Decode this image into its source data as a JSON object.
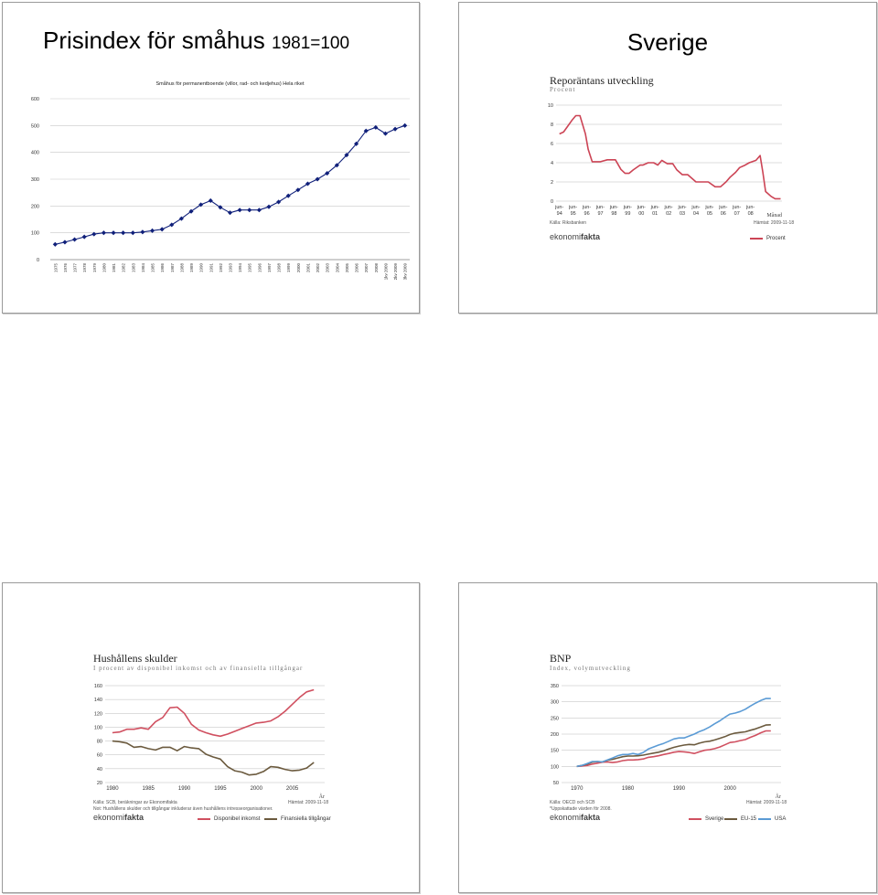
{
  "slides": [
    {
      "title_main": "Prisindex för småhus",
      "title_small": "1981=100",
      "chart_data": {
        "type": "line",
        "title": "Småhus för permanentboende (villor, rad- och kedjehus) Hela riket",
        "x": [
          "1975",
          "1976",
          "1977",
          "1978",
          "1979",
          "1980",
          "1981",
          "1982",
          "1983",
          "1984",
          "1985",
          "1986",
          "1987",
          "1988",
          "1989",
          "1990",
          "1991",
          "1992",
          "1993",
          "1994",
          "1995",
          "1996",
          "1997",
          "1998",
          "1999",
          "2000",
          "2001",
          "2002",
          "2003",
          "2004",
          "2005",
          "2006",
          "2007",
          "2008",
          "1kv 2009",
          "2kv 2009",
          "3kv 2009"
        ],
        "values": [
          57,
          65,
          75,
          85,
          95,
          100,
          100,
          100,
          100,
          103,
          108,
          113,
          130,
          153,
          180,
          205,
          220,
          195,
          175,
          185,
          185,
          185,
          197,
          215,
          238,
          260,
          283,
          300,
          322,
          352,
          390,
          432,
          480,
          493,
          470,
          487,
          500
        ],
        "ylim": [
          0,
          600
        ],
        "yticks": [
          0,
          100,
          200,
          300,
          400,
          500,
          600
        ],
        "color": "#10207a",
        "grid": true
      }
    },
    {
      "title_main": "Sverige",
      "logo": {
        "ek": "ekonomi",
        "fa": "fakta"
      },
      "chart_data": {
        "type": "line",
        "title": "Reporäntans utveckling",
        "subtitle": "Procent",
        "xlabel": "Månad",
        "xticks": [
          "jun-94",
          "jun-95",
          "jun-96",
          "jun-97",
          "jun-98",
          "jun-99",
          "jun-00",
          "jun-01",
          "jun-02",
          "jun-03",
          "jun-04",
          "jun-05",
          "jun-06",
          "jun-07",
          "jun-08"
        ],
        "x": [
          1994.0,
          1994.3,
          1994.6,
          1994.9,
          1995.2,
          1995.5,
          1995.9,
          1996.1,
          1996.4,
          1996.7,
          1997.0,
          1997.5,
          1997.9,
          1998.1,
          1998.5,
          1998.8,
          1999.1,
          1999.4,
          1999.9,
          2000.1,
          2000.5,
          2000.9,
          2001.2,
          2001.5,
          2001.9,
          2002.3,
          2002.6,
          2003.0,
          2003.4,
          2003.8,
          2004.0,
          2004.5,
          2004.9,
          2005.4,
          2005.8,
          2006.2,
          2006.5,
          2006.9,
          2007.2,
          2007.6,
          2007.9,
          2008.4,
          2008.7,
          2008.9,
          2009.1,
          2009.5,
          2009.8,
          2010.2
        ],
        "values": [
          7.0,
          7.2,
          7.8,
          8.4,
          8.9,
          8.9,
          7.0,
          5.4,
          4.1,
          4.1,
          4.1,
          4.3,
          4.3,
          4.3,
          3.3,
          2.9,
          2.9,
          3.25,
          3.75,
          3.75,
          4.0,
          4.0,
          3.75,
          4.25,
          3.9,
          3.9,
          3.25,
          2.75,
          2.75,
          2.25,
          2.0,
          2.0,
          2.0,
          1.5,
          1.5,
          2.0,
          2.5,
          3.0,
          3.5,
          3.75,
          4.0,
          4.25,
          4.75,
          3.0,
          1.0,
          0.5,
          0.25,
          0.25
        ],
        "ylim": [
          0,
          10
        ],
        "yticks": [
          0,
          2,
          4,
          6,
          8,
          10
        ],
        "source": "Källa: Riksbanken",
        "fetched": "Hämtat: 2009-11-18",
        "legend": [
          "Procent"
        ],
        "color": "#cc4455"
      }
    },
    {
      "logo": {
        "ek": "ekonomi",
        "fa": "fakta"
      },
      "chart_data": {
        "type": "line",
        "title": "Hushållens skulder",
        "subtitle": "I procent av disponibel inkomst och av finansiella tillgångar",
        "xlabel": "År",
        "xticks": [
          1980,
          1985,
          1990,
          1995,
          2000,
          2005
        ],
        "x": [
          1980,
          1981,
          1982,
          1983,
          1984,
          1985,
          1986,
          1987,
          1988,
          1989,
          1990,
          1991,
          1992,
          1993,
          1994,
          1995,
          1996,
          1997,
          1998,
          1999,
          2000,
          2001,
          2002,
          2003,
          2004,
          2005,
          2006,
          2007,
          2008
        ],
        "ylim": [
          20,
          160
        ],
        "yticks": [
          20,
          40,
          60,
          80,
          100,
          120,
          140,
          160
        ],
        "series": [
          {
            "name": "Disponibel inkomst",
            "color": "#d05060",
            "values": [
              92,
              93,
              97,
              97,
              99,
              97,
              108,
              114,
              128,
              129,
              120,
              104,
              96,
              92,
              89,
              87,
              90,
              94,
              98,
              102,
              106,
              107,
              109,
              115,
              123,
              133,
              143,
              151,
              154
            ]
          },
          {
            "name": "Finansiella tillgångar",
            "color": "#6b5a3e",
            "values": [
              80,
              79,
              77,
              71,
              72,
              69,
              67,
              71,
              71,
              66,
              72,
              70,
              69,
              61,
              57,
              54,
              43,
              37,
              35,
              31,
              32,
              36,
              43,
              42,
              39,
              37,
              38,
              41,
              49
            ]
          }
        ],
        "source": "Källa: SCB, beräkningar av Ekonomifakta",
        "fetched": "Hämtat: 2009-11-18",
        "note": "Not: Hushållens skulder och tillgångar inkluderar även hushållens intresseorganisationer."
      }
    },
    {
      "logo": {
        "ek": "ekonomi",
        "fa": "fakta"
      },
      "chart_data": {
        "type": "line",
        "title": "BNP",
        "subtitle": "Index, volymutveckling",
        "xlabel": "År",
        "xticks": [
          1970,
          1980,
          1990,
          2000
        ],
        "x": [
          1970,
          1971,
          1972,
          1973,
          1974,
          1975,
          1976,
          1977,
          1978,
          1979,
          1980,
          1981,
          1982,
          1983,
          1984,
          1985,
          1986,
          1987,
          1988,
          1989,
          1990,
          1991,
          1992,
          1993,
          1994,
          1995,
          1996,
          1997,
          1998,
          1999,
          2000,
          2001,
          2002,
          2003,
          2004,
          2005,
          2006,
          2007,
          2008
        ],
        "ylim": [
          50,
          350
        ],
        "yticks": [
          50,
          100,
          150,
          200,
          250,
          300,
          350
        ],
        "series": [
          {
            "name": "Sverige",
            "color": "#d05060",
            "values": [
              100,
              101,
              103,
              107,
              110,
              113,
              114,
              112,
              114,
              118,
              120,
              120,
              121,
              123,
              128,
              130,
              133,
              137,
              140,
              144,
              146,
              145,
              143,
              140,
              145,
              150,
              152,
              155,
              160,
              167,
              174,
              176,
              180,
              183,
              190,
              196,
              204,
              210,
              210
            ]
          },
          {
            "name": "EU-15",
            "color": "#6b5a3e",
            "values": [
              100,
              103,
              107,
              113,
              115,
              114,
              119,
              122,
              126,
              130,
              132,
              132,
              133,
              135,
              138,
              141,
              144,
              148,
              154,
              159,
              163,
              166,
              168,
              167,
              172,
              176,
              178,
              182,
              187,
              192,
              199,
              203,
              205,
              207,
              212,
              216,
              222,
              228,
              229
            ]
          },
          {
            "name": "USA",
            "color": "#5b9bd5",
            "values": [
              100,
              103,
              109,
              115,
              115,
              114,
              120,
              126,
              133,
              137,
              137,
              140,
              137,
              143,
              154,
              160,
              166,
              171,
              178,
              185,
              188,
              188,
              194,
              200,
              208,
              214,
              222,
              232,
              241,
              252,
              262,
              265,
              270,
              277,
              287,
              296,
              304,
              310,
              310
            ]
          }
        ],
        "source": "Källa: OECD och SCB",
        "fetched": "Hämtat: 2009-11-18",
        "note": "*Uppskattade värden för 2008."
      }
    }
  ]
}
